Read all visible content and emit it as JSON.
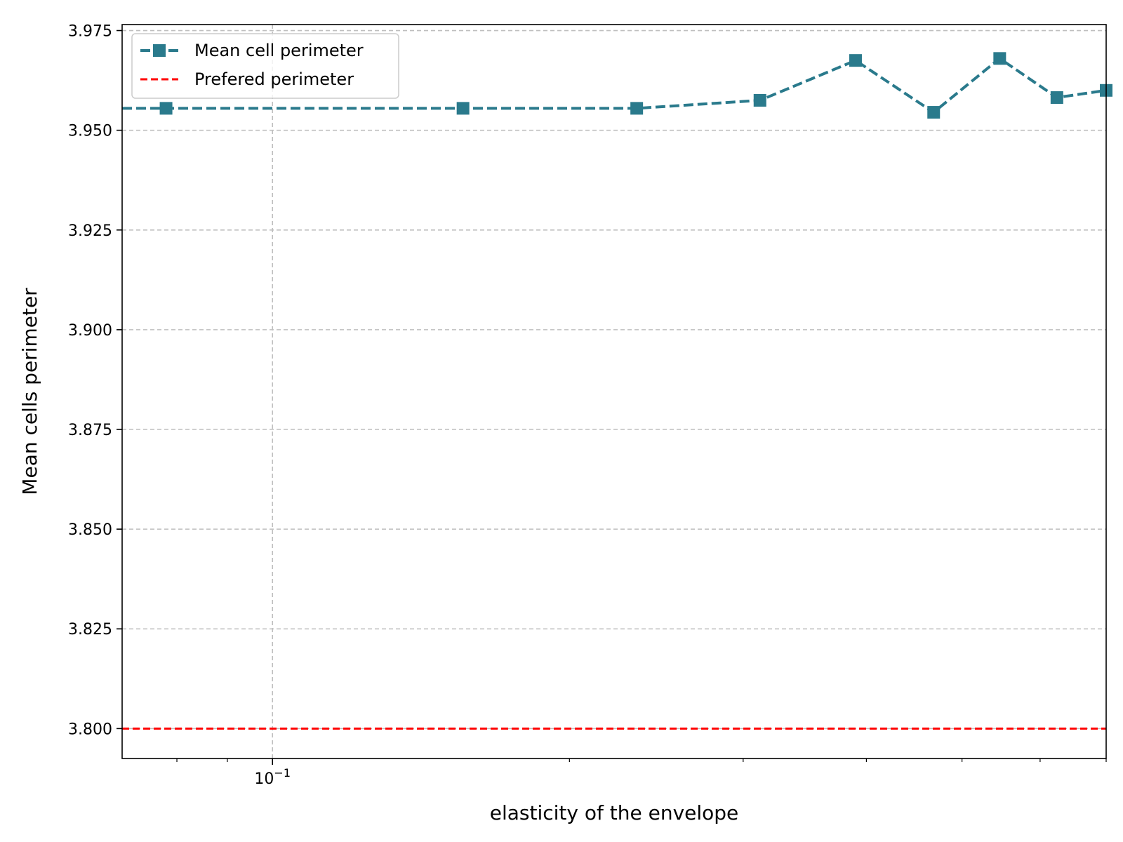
{
  "chart_data": {
    "type": "line",
    "xlabel": "elasticity of the envelope",
    "ylabel": "Mean cells perimeter",
    "x_scale": "log",
    "xlim": [
      0.0704,
      0.7
    ],
    "ylim": [
      3.7925,
      3.9765
    ],
    "x_tick_label": {
      "base": "10",
      "exponent": "−1"
    },
    "y_ticks": [
      "3.800",
      "3.825",
      "3.850",
      "3.875",
      "3.900",
      "3.925",
      "3.950",
      "3.975"
    ],
    "grid": true,
    "legend_position": "top-left",
    "series": [
      {
        "name": "Mean cell perimeter",
        "color": "#2a7a8c",
        "line_style": "dashed",
        "marker": "square",
        "x": [
          0.078,
          0.156,
          0.234,
          0.312,
          0.39,
          0.468,
          0.546,
          0.624,
          0.7
        ],
        "y": [
          3.9555,
          3.9555,
          3.9555,
          3.9575,
          3.9675,
          3.9545,
          3.968,
          3.9582,
          3.96
        ]
      }
    ],
    "reference_lines": [
      {
        "name": "Prefered perimeter",
        "value": 3.8,
        "color": "#ff0000",
        "line_style": "dashed"
      }
    ]
  }
}
